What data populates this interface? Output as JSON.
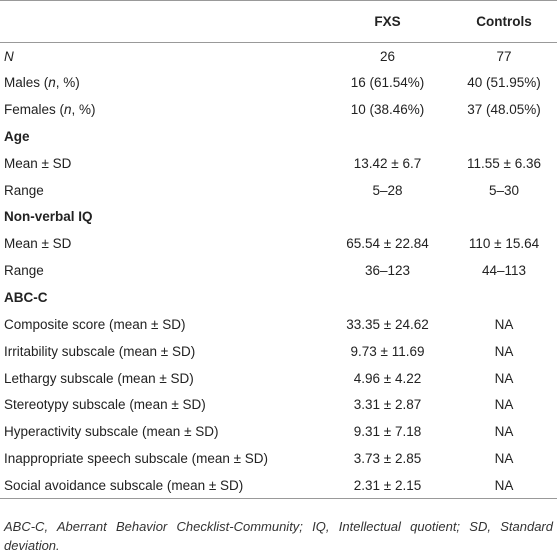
{
  "table": {
    "columns": [
      "FXS",
      "Controls"
    ],
    "rows": [
      {
        "label": [
          {
            "text": "N",
            "italic": true
          }
        ],
        "values": [
          "26",
          "77"
        ]
      },
      {
        "label": [
          "Males (",
          {
            "text": "n",
            "italic": true
          },
          ", %)"
        ],
        "values": [
          "16 (61.54%)",
          "40 (51.95%)"
        ]
      },
      {
        "label": [
          "Females (",
          {
            "text": "n",
            "italic": true
          },
          ", %)"
        ],
        "values": [
          "10 (38.46%)",
          "37 (48.05%)"
        ]
      },
      {
        "section": "Age"
      },
      {
        "label": [
          "Mean ± SD"
        ],
        "values": [
          "13.42 ± 6.7",
          "11.55 ± 6.36"
        ]
      },
      {
        "label": [
          "Range"
        ],
        "values": [
          "5–28",
          "5–30"
        ]
      },
      {
        "section": "Non-verbal IQ"
      },
      {
        "label": [
          "Mean ± SD"
        ],
        "values": [
          "65.54 ± 22.84",
          "110 ± 15.64"
        ]
      },
      {
        "label": [
          "Range"
        ],
        "values": [
          "36–123",
          "44–113"
        ]
      },
      {
        "section": "ABC-C"
      },
      {
        "label": [
          "Composite score (mean ± SD)"
        ],
        "values": [
          "33.35 ± 24.62",
          "NA"
        ]
      },
      {
        "label": [
          "Irritability subscale (mean ± SD)"
        ],
        "values": [
          "9.73 ± 11.69",
          "NA"
        ]
      },
      {
        "label": [
          "Lethargy subscale (mean ± SD)"
        ],
        "values": [
          "4.96 ± 4.22",
          "NA"
        ]
      },
      {
        "label": [
          "Stereotypy subscale (mean ± SD)"
        ],
        "values": [
          "3.31 ± 2.87",
          "NA"
        ]
      },
      {
        "label": [
          "Hyperactivity subscale (mean ± SD)"
        ],
        "values": [
          "9.31 ± 7.18",
          "NA"
        ]
      },
      {
        "label": [
          "Inappropriate speech subscale (mean ± SD)"
        ],
        "values": [
          "3.73 ± 2.85",
          "NA"
        ]
      },
      {
        "label": [
          "Social avoidance subscale (mean ± SD)"
        ],
        "values": [
          "2.31 ± 2.15",
          "NA"
        ]
      }
    ]
  },
  "footnote": "ABC-C, Aberrant Behavior Checklist-Community; IQ, Intellectual quotient; SD, Standard deviation."
}
